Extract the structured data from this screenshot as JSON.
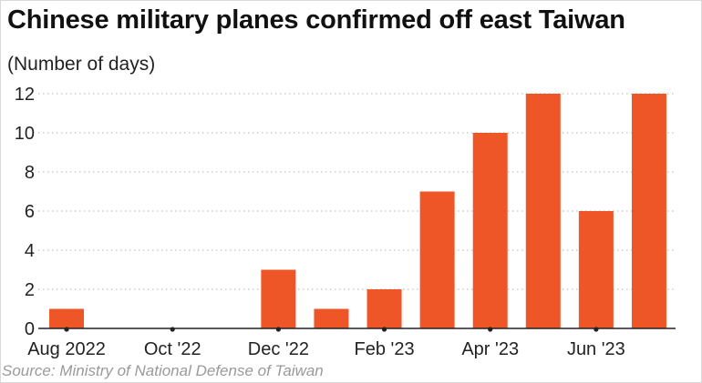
{
  "title": "Chinese military planes confirmed off east Taiwan",
  "subtitle": "(Number of days)",
  "source": "Source: Ministry of National Defense of Taiwan",
  "colors": {
    "bar": "#ee5527",
    "grid": "#b5b5b5",
    "text": "#222222",
    "axis": "#222222"
  },
  "chart_data": {
    "type": "bar",
    "title": "Chinese military planes confirmed off east Taiwan",
    "ylabel": "(Number of days)",
    "xlabel": "",
    "categories": [
      "Aug 2022",
      "Sep 2022",
      "Oct 2022",
      "Nov 2022",
      "Dec 2022",
      "Jan 2023",
      "Feb 2023",
      "Mar 2023",
      "Apr 2023",
      "May 2023",
      "Jun 2023",
      "Jul 2023"
    ],
    "values": [
      1,
      0,
      0,
      0,
      3,
      1,
      2,
      7,
      10,
      12,
      6,
      12
    ],
    "x_tick_labels": [
      "Aug 2022",
      "Oct '22",
      "Dec '22",
      "Feb '23",
      "Apr '23",
      "Jun '23"
    ],
    "x_tick_categories": [
      "Aug 2022",
      "Oct 2022",
      "Dec 2022",
      "Feb 2023",
      "Apr 2023",
      "Jun 2023"
    ],
    "y_ticks": [
      0,
      2,
      4,
      6,
      8,
      10,
      12
    ],
    "ylim": [
      0,
      12
    ],
    "grid": true,
    "legend": "none"
  }
}
